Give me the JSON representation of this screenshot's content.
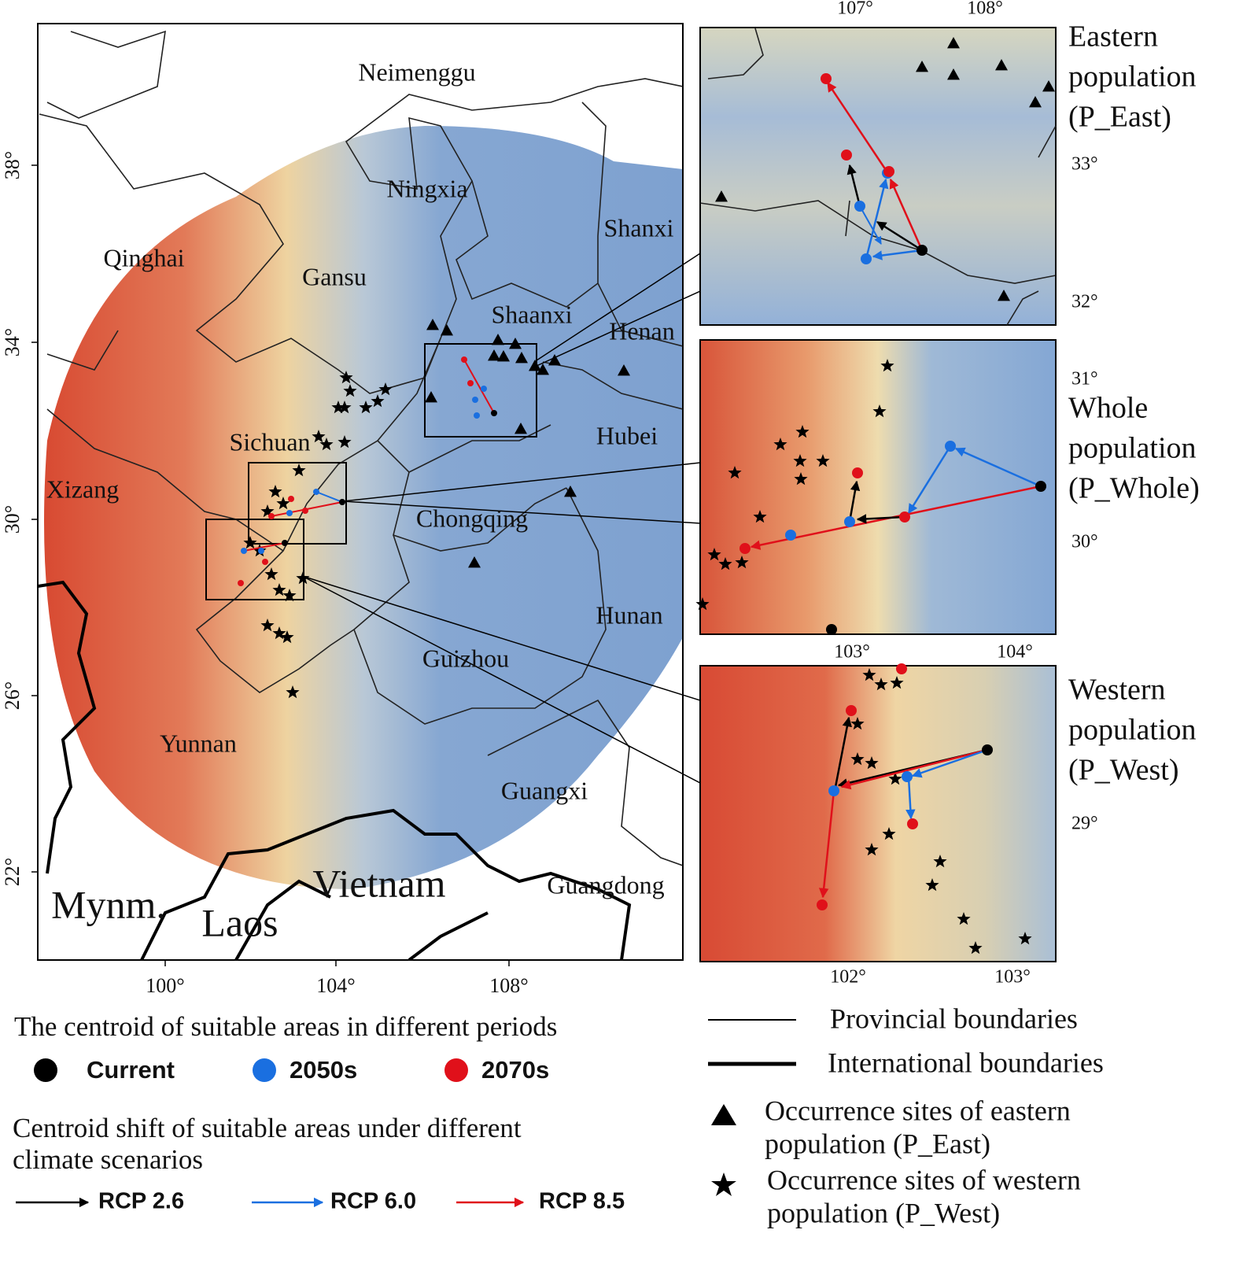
{
  "main_map": {
    "province_labels": [
      "Neimenggu",
      "Ningxia",
      "Shanxi",
      "Qinghai",
      "Gansu",
      "Shaanxi",
      "Henan",
      "Sichuan",
      "Hubei",
      "Xizang",
      "Chongqing",
      "Hunan",
      "Guizhou",
      "Yunnan",
      "Guangxi",
      "Guangdong"
    ],
    "country_labels": [
      "Mynm.",
      "Laos",
      "Vietnam"
    ],
    "x_ticks": [
      "100°",
      "104°",
      "108°"
    ],
    "y_ticks": [
      "38°",
      "34°",
      "30°",
      "26°",
      "22°"
    ]
  },
  "insets": [
    {
      "title_lines": [
        "Eastern",
        "population",
        "(P_East)"
      ],
      "x_ticks": [
        "107°",
        "108°"
      ],
      "y_ticks": [
        "33°",
        "32°"
      ]
    },
    {
      "title_lines": [
        "Whole",
        "population",
        "(P_Whole)"
      ],
      "x_ticks": [
        "103°",
        "104°"
      ],
      "y_ticks": [
        "31°",
        "30°"
      ]
    },
    {
      "title_lines": [
        "Western",
        "population",
        "(P_West)"
      ],
      "x_ticks": [
        "102°",
        "103°"
      ],
      "y_ticks": [
        "29°"
      ]
    }
  ],
  "legend": {
    "periods_title": "The centroid of suitable areas in different periods",
    "periods": [
      "Current",
      "2050s",
      "2070s"
    ],
    "period_colors": [
      "#000000",
      "#1a6fe0",
      "#e0101a"
    ],
    "shift_title_lines": [
      "Centroid shift of suitable areas under different",
      "climate scenarios"
    ],
    "scenarios": [
      "RCP 2.6",
      "RCP 6.0",
      "RCP 8.5"
    ],
    "scenario_colors": [
      "#000000",
      "#1a6fe0",
      "#e0101a"
    ],
    "boundaries": [
      "Provincial  boundaries",
      "International  boundaries"
    ],
    "sites": [
      [
        "Occurrence sites of eastern",
        "population (P_East)"
      ],
      [
        "Occurrence sites of western",
        "population (P_West)"
      ]
    ]
  }
}
